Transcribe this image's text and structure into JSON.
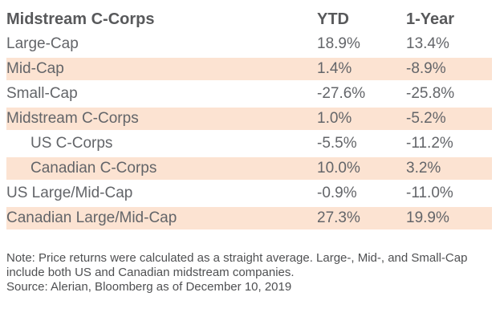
{
  "chart_data": {
    "type": "table",
    "title": "Midstream C-Corps",
    "columns": [
      "Midstream C-Corps",
      "YTD",
      "1-Year"
    ],
    "rows": [
      [
        "Large-Cap",
        "18.9%",
        "13.4%"
      ],
      [
        "Mid-Cap",
        "1.4%",
        "-8.9%"
      ],
      [
        "Small-Cap",
        "-27.6%",
        "-25.8%"
      ],
      [
        "Midstream C-Corps",
        "1.0%",
        "-5.2%"
      ],
      [
        "US C-Corps",
        "-5.5%",
        "-11.2%"
      ],
      [
        "Canadian C-Corps",
        "10.0%",
        "3.2%"
      ],
      [
        "US Large/Mid-Cap",
        "-0.9%",
        "-11.0%"
      ],
      [
        "Canadian Large/Mid-Cap",
        "27.3%",
        "19.9%"
      ]
    ],
    "note": "Note: Price returns were calculated as a straight average. Large-, Mid-, and Small-Cap include both US and Canadian midstream companies.",
    "source": "Source: Alerian, Bloomberg as of December 10, 2019"
  },
  "table": {
    "header": {
      "label": "Midstream C-Corps",
      "ytd": "YTD",
      "one_year": "1-Year"
    },
    "rows": [
      {
        "label": "Large-Cap",
        "ytd": "18.9%",
        "one_year": "13.4%",
        "shaded": false,
        "indent": false
      },
      {
        "label": "Mid-Cap",
        "ytd": "1.4%",
        "one_year": "-8.9%",
        "shaded": true,
        "indent": false
      },
      {
        "label": "Small-Cap",
        "ytd": "-27.6%",
        "one_year": "-25.8%",
        "shaded": false,
        "indent": false
      },
      {
        "label": "Midstream C-Corps",
        "ytd": "1.0%",
        "one_year": "-5.2%",
        "shaded": true,
        "indent": false
      },
      {
        "label": "US C-Corps",
        "ytd": "-5.5%",
        "one_year": "-11.2%",
        "shaded": false,
        "indent": true
      },
      {
        "label": "Canadian C-Corps",
        "ytd": "10.0%",
        "one_year": "3.2%",
        "shaded": true,
        "indent": true
      },
      {
        "label": "US Large/Mid-Cap",
        "ytd": "-0.9%",
        "one_year": "-11.0%",
        "shaded": false,
        "indent": false
      },
      {
        "label": "Canadian Large/Mid-Cap",
        "ytd": "27.3%",
        "one_year": "19.9%",
        "shaded": true,
        "indent": false
      }
    ]
  },
  "footnotes": {
    "note": "Note: Price returns were calculated as a straight average. Large-, Mid-, and Small-Cap include both US and Canadian midstream companies.",
    "source": "Source: Alerian, Bloomberg as of December 10, 2019"
  },
  "colors": {
    "row_shade": "#fce3d2",
    "header_text": "#58595b",
    "body_text": "#636569",
    "footnote_text": "#4f5052",
    "background": "#ffffff"
  }
}
